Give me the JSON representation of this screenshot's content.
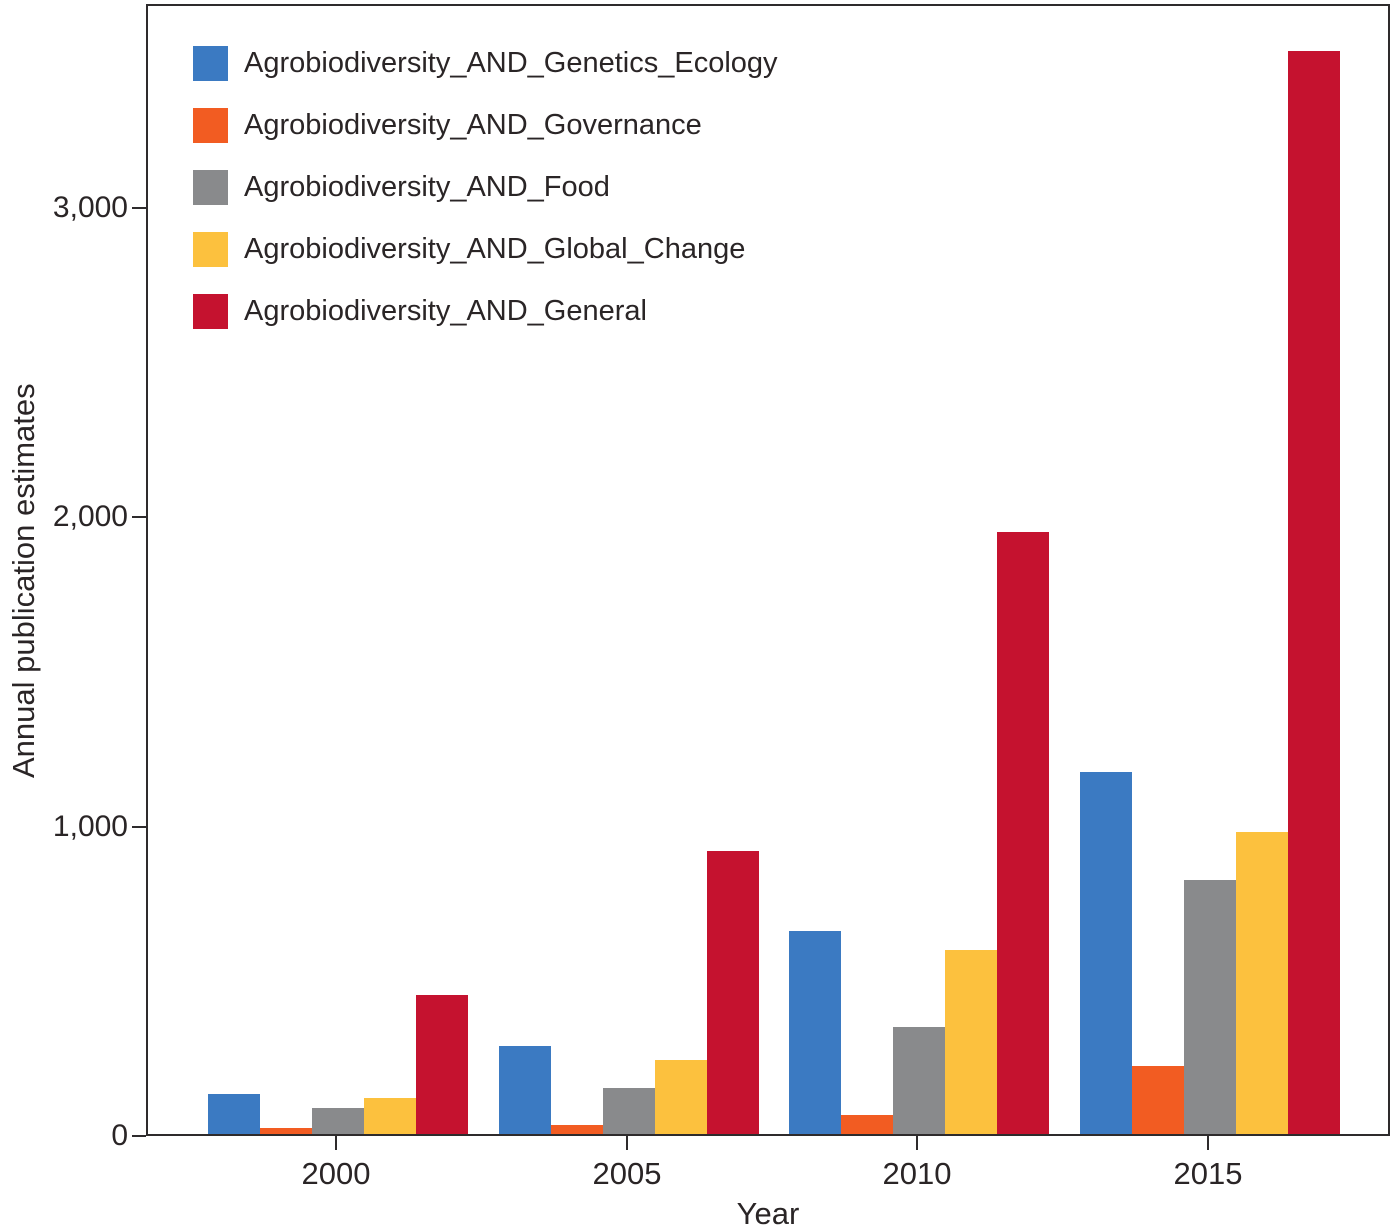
{
  "chart_data": {
    "type": "bar",
    "title": "",
    "xlabel": "Year",
    "ylabel": "Annual publication estimates",
    "categories": [
      "2000",
      "2005",
      "2010",
      "2015"
    ],
    "series": [
      {
        "name": "Agrobiodiversity_AND_Genetics_Ecology",
        "color": "#3b7ac2",
        "values": [
          130,
          285,
          655,
          1170
        ]
      },
      {
        "name": "Agrobiodiversity_AND_Governance",
        "color": "#f25c22",
        "values": [
          20,
          30,
          60,
          220
        ]
      },
      {
        "name": "Agrobiodiversity_AND_Food",
        "color": "#898a8c",
        "values": [
          85,
          150,
          345,
          820
        ]
      },
      {
        "name": "Agrobiodiversity_AND_Global_Change",
        "color": "#fcc13e",
        "values": [
          115,
          240,
          595,
          975
        ]
      },
      {
        "name": "Agrobiodiversity_AND_General",
        "color": "#c5122f",
        "values": [
          450,
          915,
          1945,
          3500
        ]
      }
    ],
    "yticks": [
      {
        "label": "0",
        "value": 0
      },
      {
        "label": "1,000",
        "value": 1000
      },
      {
        "label": "2,000",
        "value": 2000
      },
      {
        "label": "3,000",
        "value": 3000
      }
    ],
    "ylim": [
      0,
      3660
    ],
    "grid": false,
    "legend_position": "top-left-inside"
  }
}
